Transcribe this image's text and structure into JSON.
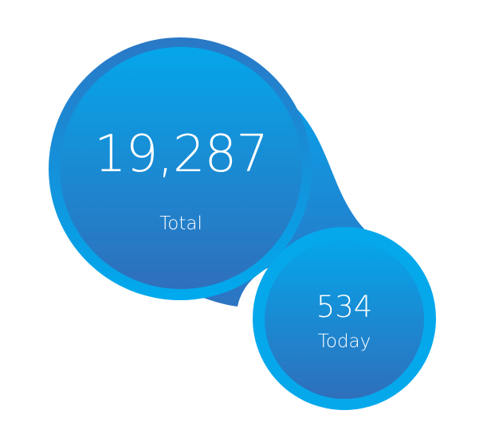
{
  "total": {
    "value": "19,287",
    "label": "Total"
  },
  "today": {
    "value": "534",
    "label": "Today"
  },
  "colors": {
    "accent_light": "#06aaee",
    "accent_mid": "#1c8ed8",
    "accent_dark": "#2f6fbb"
  }
}
